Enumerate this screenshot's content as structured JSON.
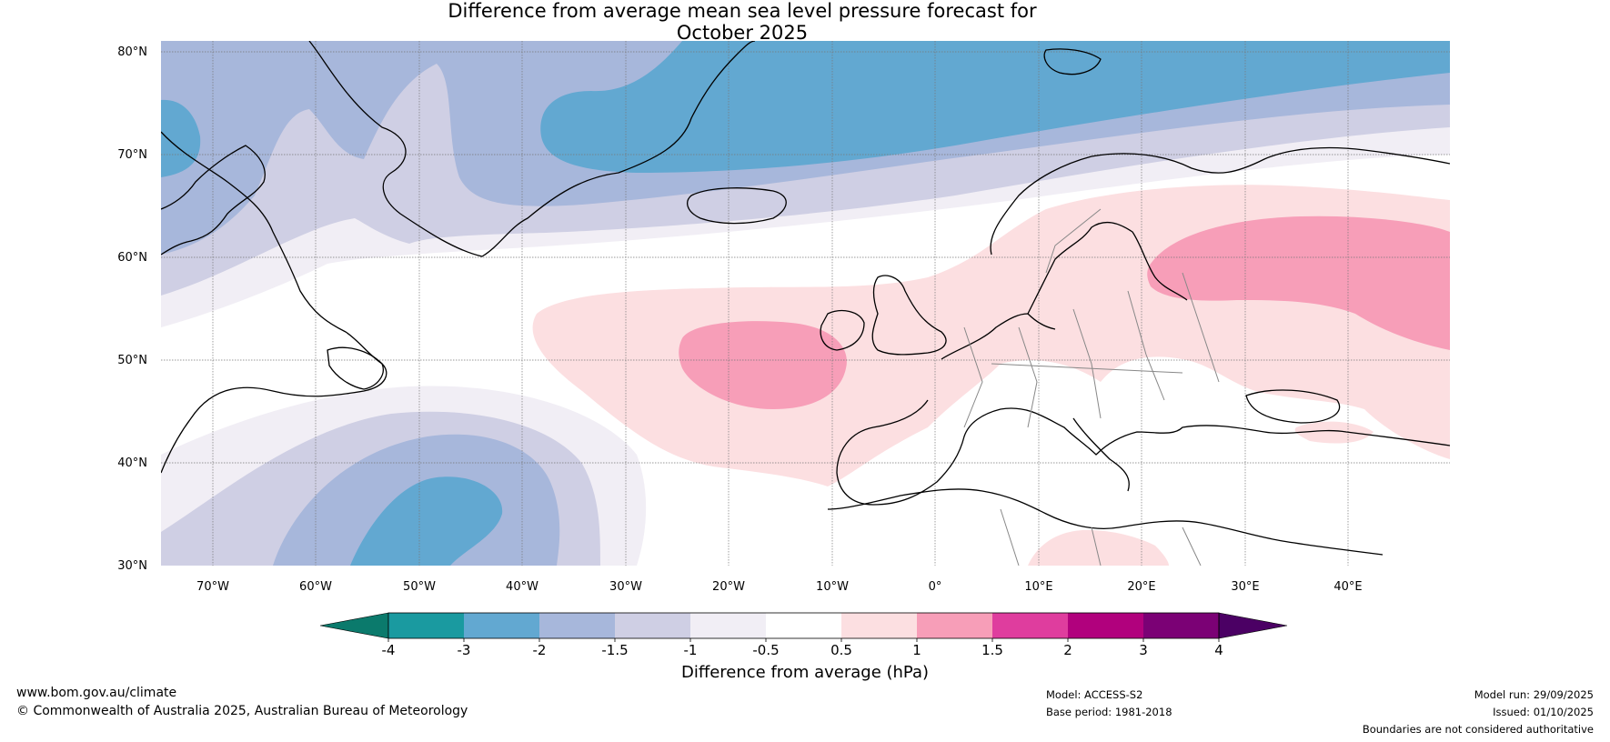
{
  "title": {
    "line1": "Difference from average mean sea level pressure forecast for",
    "line2": "October 2025"
  },
  "map": {
    "lat_ticks": [
      "80°N",
      "70°N",
      "60°N",
      "50°N",
      "40°N",
      "30°N"
    ],
    "lon_ticks": [
      "70°W",
      "60°W",
      "50°W",
      "40°W",
      "30°W",
      "20°W",
      "10°W",
      "0°",
      "10°E",
      "20°E",
      "30°E",
      "40°E"
    ],
    "lon_range": [
      -75,
      50
    ],
    "lat_range": [
      30,
      81
    ]
  },
  "colorbar": {
    "label": "Difference from average (hPa)",
    "ticks": [
      "-4",
      "-3",
      "-2",
      "-1.5",
      "-1",
      "-0.5",
      "0.5",
      "1",
      "1.5",
      "2",
      "3",
      "4"
    ],
    "colors": [
      "#0b7a6c",
      "#1a9aa0",
      "#62a8d1",
      "#a7b7db",
      "#cfcfe4",
      "#f1eef5",
      "#ffffff",
      "#fcdfe1",
      "#f79eb8",
      "#df3d9e",
      "#b1017d",
      "#7b0175",
      "#4b0064"
    ]
  },
  "footer": {
    "website": "www.bom.gov.au/climate",
    "copyright": "© Commonwealth of Australia 2025, Australian Bureau of Meteorology",
    "model": "Model: ACCESS-S2",
    "base_period": "Base period: 1981-2018",
    "model_run": "Model run: 29/09/2025",
    "issued": "Issued: 01/10/2025",
    "disclaimer": "Boundaries are not considered authoritative"
  }
}
